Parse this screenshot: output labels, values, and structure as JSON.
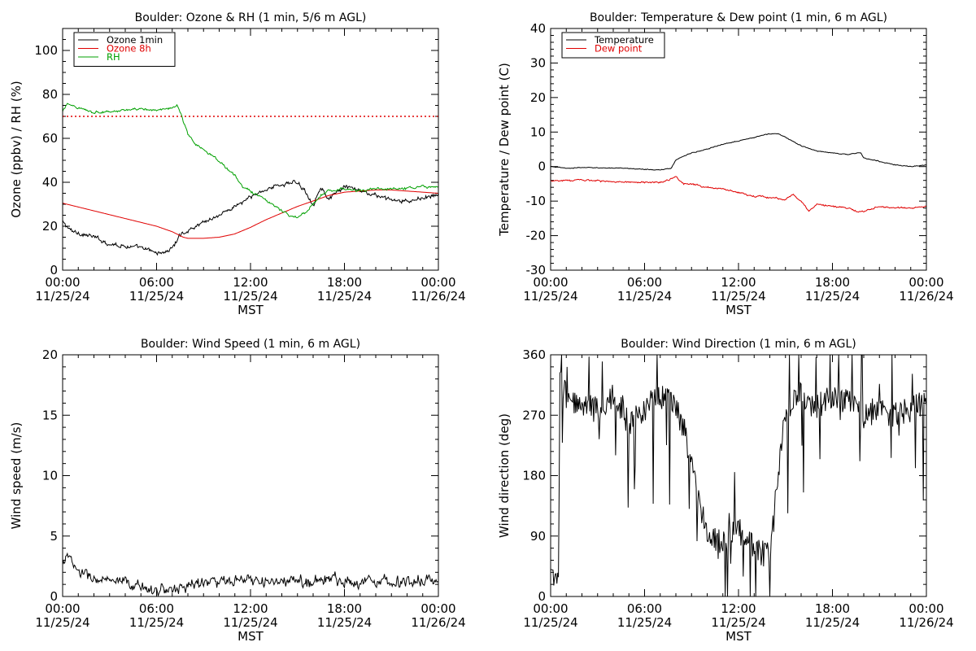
{
  "chart_data": [
    {
      "type": "line",
      "title": "Boulder: Ozone & RH (1 min, 5/6 m AGL)",
      "ylabel": "Ozone (ppbv) / RH (%)",
      "xlabel": "MST",
      "ylim": [
        0,
        110
      ],
      "yticks": [
        0,
        20,
        40,
        60,
        80,
        100
      ],
      "xlim": [
        0,
        24
      ],
      "xticks": [
        0,
        6,
        12,
        18,
        24
      ],
      "xticklabels": [
        [
          "00:00",
          "11/25/24"
        ],
        [
          "06:00",
          "11/25/24"
        ],
        [
          "12:00",
          "11/25/24"
        ],
        [
          "18:00",
          "11/25/24"
        ],
        [
          "00:00",
          "11/26/24"
        ]
      ],
      "legend": "top-left",
      "reference_line": {
        "y": 70,
        "color": "#e00000",
        "style": "dotted"
      },
      "series": [
        {
          "name": "Ozone 1min",
          "color": "#000000",
          "noise": 1.2,
          "x": [
            0,
            0.5,
            1,
            2,
            3,
            4,
            5,
            6,
            6.5,
            7,
            7.5,
            8,
            9,
            10,
            11,
            12,
            13,
            14,
            15,
            15.5,
            16,
            16.5,
            17,
            18,
            19,
            20,
            21,
            22,
            23,
            24
          ],
          "y": [
            22,
            18,
            17,
            15,
            12,
            11,
            10,
            8,
            8,
            10,
            16,
            18,
            22,
            25,
            29,
            33,
            37,
            39,
            40,
            36,
            30,
            38,
            32,
            38,
            36,
            34,
            32,
            31,
            33,
            34
          ]
        },
        {
          "name": "Ozone 8h",
          "color": "#e00000",
          "noise": 0,
          "x": [
            0,
            2,
            4,
            6,
            7,
            7.7,
            8,
            9,
            10,
            11,
            12,
            13,
            14,
            15,
            16,
            17,
            18,
            19,
            20,
            21,
            22,
            23,
            24
          ],
          "y": [
            30.5,
            27,
            23.5,
            20,
            17.5,
            15,
            14.5,
            14.5,
            15,
            16.5,
            19.5,
            23,
            26,
            29,
            31.5,
            34,
            35.5,
            36,
            36.5,
            36.5,
            36,
            35.5,
            35
          ]
        },
        {
          "name": "RH",
          "color": "#00a000",
          "noise": 0.7,
          "x": [
            0,
            0.3,
            1,
            2,
            3,
            4,
            5,
            6,
            7,
            7.3,
            7.6,
            8,
            8.5,
            9,
            10,
            10.5,
            11,
            11.5,
            12,
            13,
            14,
            14.5,
            15,
            15.5,
            16,
            16.5,
            17,
            18,
            19,
            20,
            21,
            22,
            23,
            24
          ],
          "y": [
            72,
            76,
            74,
            72,
            72,
            73,
            73,
            73,
            74,
            75,
            70,
            62,
            57,
            55,
            50,
            46,
            43,
            38,
            36,
            32,
            27,
            25,
            24,
            26,
            30,
            34,
            36,
            37,
            36,
            37,
            37,
            37,
            38,
            38
          ]
        }
      ]
    },
    {
      "type": "line",
      "title": "Boulder: Temperature & Dew point (1 min, 6 m AGL)",
      "ylabel": "Temperature / Dew point (C)",
      "xlabel": "MST",
      "ylim": [
        -30,
        40
      ],
      "yticks": [
        -30,
        -20,
        -10,
        0,
        10,
        20,
        30,
        40
      ],
      "xlim": [
        0,
        24
      ],
      "xticks": [
        0,
        6,
        12,
        18,
        24
      ],
      "xticklabels": [
        [
          "00:00",
          "11/25/24"
        ],
        [
          "06:00",
          "11/25/24"
        ],
        [
          "12:00",
          "11/25/24"
        ],
        [
          "18:00",
          "11/25/24"
        ],
        [
          "00:00",
          "11/26/24"
        ]
      ],
      "legend": "top-left",
      "series": [
        {
          "name": "Temperature",
          "color": "#000000",
          "noise": 0.15,
          "x": [
            0,
            1,
            2,
            3,
            4,
            5,
            6,
            7,
            7.7,
            8,
            8.5,
            9,
            10,
            11,
            12,
            13,
            14,
            14.5,
            15,
            16,
            17,
            18,
            19,
            19.8,
            20,
            21,
            22,
            23,
            24
          ],
          "y": [
            0,
            -0.5,
            -0.3,
            -0.3,
            -0.5,
            -0.5,
            -0.8,
            -1,
            -0.5,
            2,
            3,
            4,
            5,
            6.5,
            7.5,
            8.5,
            9.5,
            9.5,
            8.5,
            6,
            4.5,
            4,
            3.5,
            4,
            2.5,
            1.5,
            0.5,
            0,
            0.5
          ]
        },
        {
          "name": "Dew point",
          "color": "#e00000",
          "noise": 0.3,
          "x": [
            0,
            1,
            2,
            3,
            4,
            5,
            6,
            7,
            7.5,
            8,
            8.5,
            9,
            10,
            11,
            12,
            13,
            14,
            15,
            15.5,
            16,
            16.5,
            17,
            18,
            19,
            19.5,
            20,
            21,
            22,
            23,
            24
          ],
          "y": [
            -4,
            -4,
            -4,
            -4,
            -4.5,
            -4.5,
            -4.5,
            -4.5,
            -4,
            -3,
            -5,
            -5,
            -6,
            -6.5,
            -7.5,
            -8.5,
            -9,
            -9.5,
            -8,
            -10,
            -13,
            -11,
            -11.5,
            -12,
            -13,
            -13,
            -11.5,
            -12,
            -12,
            -11.5
          ]
        }
      ]
    },
    {
      "type": "line",
      "title": "Boulder: Wind Speed (1 min, 6 m AGL)",
      "ylabel": "Wind speed (m/s)",
      "xlabel": "MST",
      "ylim": [
        0,
        20
      ],
      "yticks": [
        0,
        5,
        10,
        15,
        20
      ],
      "xlim": [
        0,
        24
      ],
      "xticks": [
        0,
        6,
        12,
        18,
        24
      ],
      "xticklabels": [
        [
          "00:00",
          "11/25/24"
        ],
        [
          "06:00",
          "11/25/24"
        ],
        [
          "12:00",
          "11/25/24"
        ],
        [
          "18:00",
          "11/25/24"
        ],
        [
          "00:00",
          "11/26/24"
        ]
      ],
      "series": [
        {
          "name": "",
          "color": "#000000",
          "noise": 0.6,
          "clip_min": 0,
          "x": [
            0,
            0.2,
            1,
            2,
            3,
            4,
            5,
            6,
            7,
            7.5,
            8,
            9,
            10,
            11,
            12,
            13,
            14,
            15,
            16,
            17,
            18,
            19,
            20,
            21,
            22,
            23,
            24
          ],
          "y": [
            2.5,
            3.5,
            2,
            1.5,
            1.2,
            1,
            0.8,
            0.6,
            0.5,
            0.7,
            1,
            1.2,
            1.2,
            1.2,
            1.3,
            1.2,
            1.2,
            1.2,
            1.3,
            1.5,
            1.3,
            1.2,
            1.4,
            1.3,
            1.2,
            1.3,
            1.2
          ]
        }
      ]
    },
    {
      "type": "line",
      "title": "Boulder: Wind Direction (1 min, 6 m AGL)",
      "ylabel": "Wind direction (deg)",
      "xlabel": "MST",
      "ylim": [
        0,
        360
      ],
      "yticks": [
        0,
        90,
        180,
        270,
        360
      ],
      "xlim": [
        0,
        24
      ],
      "xticks": [
        0,
        6,
        12,
        18,
        24
      ],
      "xticklabels": [
        [
          "00:00",
          "11/25/24"
        ],
        [
          "06:00",
          "11/25/24"
        ],
        [
          "12:00",
          "11/25/24"
        ],
        [
          "18:00",
          "11/25/24"
        ],
        [
          "00:00",
          "11/26/24"
        ]
      ],
      "series": [
        {
          "name": "",
          "color": "#000000",
          "noise": 20,
          "wrap": true,
          "x": [
            0,
            0.5,
            0.6,
            1,
            2,
            3,
            4,
            5,
            6,
            7,
            8,
            8.5,
            9,
            10,
            11,
            12,
            13,
            14,
            15,
            16,
            17,
            18,
            19,
            20,
            21,
            22,
            23,
            24
          ],
          "y": [
            30,
            20,
            330,
            300,
            280,
            280,
            300,
            260,
            280,
            300,
            280,
            250,
            200,
            90,
            80,
            100,
            70,
            60,
            280,
            300,
            280,
            300,
            290,
            270,
            280,
            270,
            280,
            290
          ]
        }
      ]
    }
  ]
}
